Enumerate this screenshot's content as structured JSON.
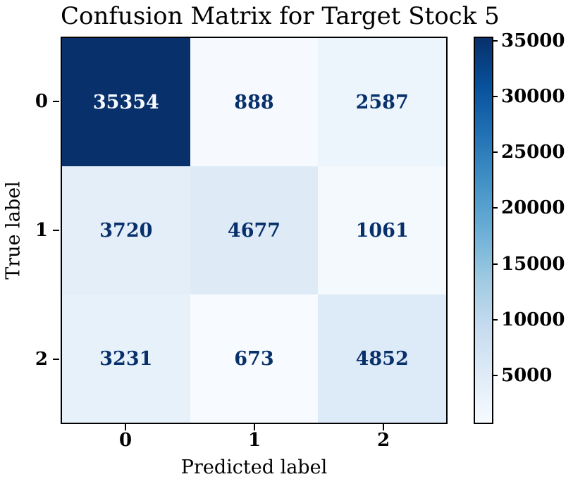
{
  "figure": {
    "title": "Confusion Matrix for Target Stock 5"
  },
  "chart_data": {
    "type": "heatmap",
    "title": "Confusion Matrix for Target Stock 5",
    "xlabel": "Predicted label",
    "ylabel": "True label",
    "x_tick_labels": [
      "0",
      "1",
      "2"
    ],
    "y_tick_labels": [
      "0",
      "1",
      "2"
    ],
    "matrix": [
      [
        35354,
        888,
        2587
      ],
      [
        3720,
        4677,
        1061
      ],
      [
        3231,
        673,
        4852
      ]
    ],
    "colormap": "Blues",
    "colorbar": {
      "vmin": 673,
      "vmax": 35354,
      "ticks": [
        5000,
        10000,
        15000,
        20000,
        25000,
        30000,
        35000
      ],
      "position": "right"
    },
    "grid": false,
    "legend_position": "none"
  },
  "colors": {
    "background": "#ffffff",
    "axis": "#000000",
    "label_text": "#000000",
    "cell_text_dark": "#08306b",
    "cell_text_light": "#f7fbff",
    "cell_fill": [
      [
        "#08306b",
        "#f6fafe",
        "#ecf4fc"
      ],
      [
        "#e3eef9",
        "#deebf7",
        "#f4f9fe"
      ],
      [
        "#e7f1fa",
        "#f7fbff",
        "#ddeaf7"
      ]
    ],
    "cell_text": [
      [
        "#f7fbff",
        "#08306b",
        "#08306b"
      ],
      [
        "#08306b",
        "#08306b",
        "#08306b"
      ],
      [
        "#08306b",
        "#08306b",
        "#08306b"
      ]
    ],
    "colorbar_gradient": [
      "#08306b",
      "#08519c",
      "#2171b5",
      "#4292c6",
      "#6baed6",
      "#9ecae1",
      "#c6dbef",
      "#deebf7",
      "#f7fbff"
    ]
  }
}
